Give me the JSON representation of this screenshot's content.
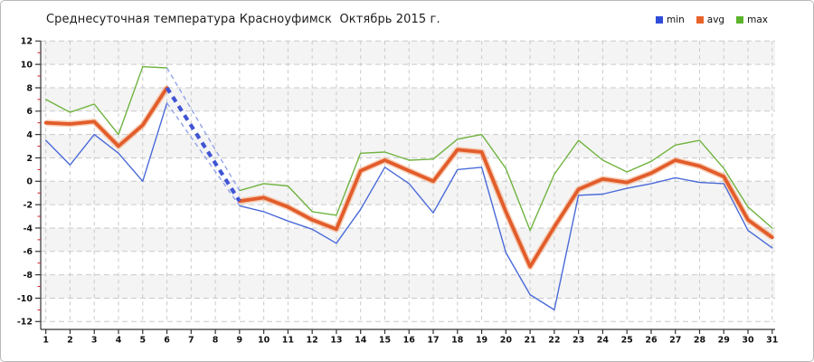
{
  "title": "Среднесуточная температура Красноуфимск  Октябрь 2015 г.",
  "legend": [
    {
      "label": "min",
      "color": "#2f4cd9"
    },
    {
      "label": "avg",
      "color": "#e8632c"
    },
    {
      "label": "max",
      "color": "#5db32c"
    }
  ],
  "colors": {
    "min_line": "#4a6ad9",
    "avg_line": "#e25c2b",
    "avg_halo": "#f2a878",
    "max_line": "#70b33f",
    "gap_dash_thick": "#4055d4",
    "gap_dash_thin": "#8b9de8",
    "grid": "#c9c9c9",
    "band": "#f4f4f4",
    "axis": "#333333",
    "tick_label": "#111111",
    "minor_tick": "#cc2222"
  },
  "chart_data": {
    "type": "line",
    "title": "Среднесуточная температура Красноуфимск  Октябрь 2015 г.",
    "x": [
      1,
      2,
      3,
      4,
      5,
      6,
      7,
      8,
      9,
      10,
      11,
      12,
      13,
      14,
      15,
      16,
      17,
      18,
      19,
      20,
      21,
      22,
      23,
      24,
      25,
      26,
      27,
      28,
      29,
      30,
      31
    ],
    "xlabel": "",
    "ylabel": "",
    "ylim": [
      -12,
      12
    ],
    "ytick_step": 2,
    "grid": "dashed",
    "background_bands": "alternating gray/white every 2 units",
    "legend_position": "top-right",
    "missing_x": [
      7,
      8
    ],
    "gap_style": "gap between day 6 and day 9 bridged by blue dashed lines (thick for avg, thin for min/max)",
    "series": [
      {
        "name": "min",
        "values": [
          3.5,
          1.4,
          4.0,
          2.4,
          0.0,
          6.7,
          null,
          null,
          -2.1,
          -2.6,
          -3.4,
          -4.1,
          -5.3,
          -2.4,
          1.2,
          -0.2,
          -2.7,
          1.0,
          1.2,
          -6.1,
          -9.7,
          -11.0,
          -1.2,
          -1.1,
          -0.6,
          -0.2,
          0.3,
          -0.1,
          -0.2,
          -4.2,
          -5.7
        ]
      },
      {
        "name": "avg",
        "values": [
          5.0,
          4.9,
          5.1,
          3.0,
          4.8,
          8.0,
          null,
          null,
          -1.7,
          -1.4,
          -2.2,
          -3.3,
          -4.1,
          0.9,
          1.8,
          0.9,
          0.0,
          2.7,
          2.5,
          -2.6,
          -7.3,
          -3.9,
          -0.7,
          0.2,
          -0.1,
          0.7,
          1.8,
          1.3,
          0.4,
          -3.3,
          -4.8
        ]
      },
      {
        "name": "max",
        "values": [
          7.0,
          5.9,
          6.6,
          4.0,
          9.8,
          9.7,
          null,
          null,
          -0.8,
          -0.2,
          -0.4,
          -2.6,
          -2.9,
          2.4,
          2.5,
          1.8,
          1.9,
          3.6,
          4.0,
          1.1,
          -4.2,
          0.6,
          3.5,
          1.8,
          0.8,
          1.7,
          3.1,
          3.5,
          1.1,
          -2.2,
          -4.0
        ]
      }
    ]
  }
}
